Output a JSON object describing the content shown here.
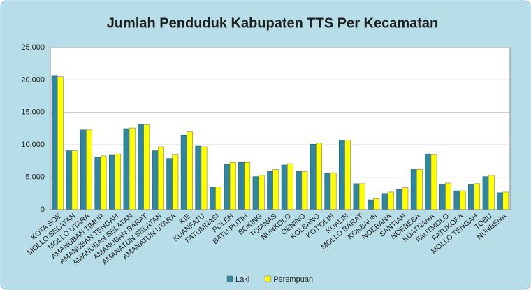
{
  "chart_data": {
    "type": "bar",
    "title": "Jumlah Penduduk Kabupaten TTS Per Kecamatan",
    "categories": [
      "KOTA SOE",
      "MOLLO SELATAN",
      "MOLLO UTARA",
      "AMANUBAN TIMUR",
      "AMANUBAN TENGAH",
      "AMANUBAN SELATAN",
      "AMANUBAN BARAT",
      "AMANATUN SELATAN",
      "AMANATUN UTARA",
      "KIE",
      "KUANFATU",
      "FATUMNASI",
      "POLEN",
      "BATU PUTIH",
      "BOKING",
      "TOIANAS",
      "NUNKOLO",
      "OENINO",
      "KOLBANO",
      "KOT'OLIN",
      "KUALIN",
      "MOLLO BARAT",
      "KOKBAUN",
      "NOEBANA",
      "SANTIAN",
      "NOEBEBA",
      "KUATNANA",
      "FAUTMOLO",
      "FATUKOPA",
      "MOLLO TENGAH",
      "TOBU",
      "NUNBENA"
    ],
    "series": [
      {
        "name": "Laki",
        "color": "#31859c",
        "values": [
          20600,
          9100,
          12300,
          8100,
          8400,
          12500,
          13100,
          9100,
          7900,
          11500,
          9800,
          3400,
          7000,
          7300,
          5100,
          5900,
          6900,
          5900,
          10100,
          5600,
          10700,
          4000,
          1500,
          2500,
          3100,
          6200,
          8600,
          3900,
          2900,
          3900,
          5100,
          2600
        ]
      },
      {
        "name": "Perempuan",
        "color": "#ffff00",
        "values": [
          20500,
          9100,
          12300,
          8300,
          8600,
          12600,
          13100,
          9700,
          8500,
          12000,
          9700,
          3500,
          7300,
          7300,
          5300,
          6200,
          7100,
          5900,
          10300,
          5700,
          10700,
          4000,
          1700,
          2700,
          3400,
          6200,
          8500,
          4100,
          2900,
          4000,
          5300,
          2700
        ]
      }
    ],
    "ylim": [
      0,
      25000
    ],
    "yticks": [
      0,
      {
        "value": 5000,
        "label": "5,000"
      },
      {
        "value": 10000,
        "label": "10,000"
      },
      {
        "value": 15000,
        "label": "15,000"
      },
      {
        "value": 20000,
        "label": "20,000"
      },
      {
        "value": 25000,
        "label": "25,000"
      }
    ],
    "grid": true,
    "legend": "bottom"
  }
}
